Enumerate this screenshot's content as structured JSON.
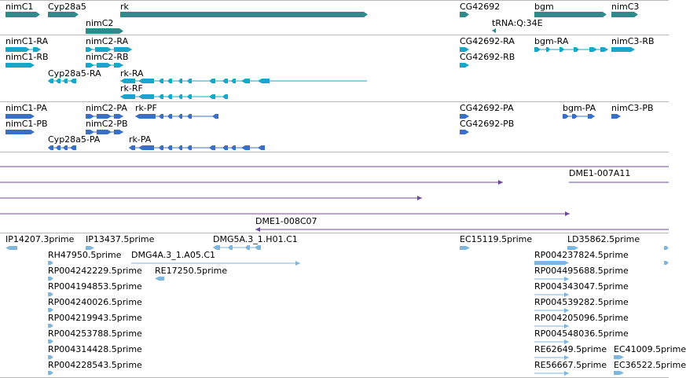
{
  "colors": {
    "gene": "#2e8b8b",
    "rna": "#1aa6c8",
    "protein": "#3a6fc8",
    "clone": "#6b4a9e",
    "est": "#7fb6dd",
    "separator": "#b8b8b8"
  },
  "tracks": {
    "genes": {
      "labels": [
        "nimC1",
        "Cyp28a5",
        "rk",
        "CG42692",
        "bgm",
        "nimC3",
        "nimC2",
        "tRNA:Q:34E"
      ]
    },
    "transcripts": {
      "labels": [
        "nimC1-RA",
        "nimC2-RA",
        "CG42692-RA",
        "bgm-RA",
        "nimC3-RB",
        "nimC1-RB",
        "nimC2-RB",
        "CG42692-RB",
        "Cyp28a5-RA",
        "rk-RA",
        "rk-RF"
      ]
    },
    "proteins": {
      "labels": [
        "nimC1-PA",
        "nimC2-PA",
        "rk-PF",
        "CG42692-PA",
        "bgm-PA",
        "nimC3-PB",
        "nimC1-PB",
        "nimC2-PB",
        "CG42692-PB",
        "Cyp28a5-PA",
        "rk-PA"
      ]
    },
    "clones": {
      "labels": [
        "DME1-007A11",
        "DME1-008C07"
      ]
    },
    "ests": {
      "labels": [
        "IP14207.3prime",
        "IP13437.5prime",
        "DMG5A.3_1.H01.C1",
        "EC15119.5prime",
        "LD35862.5prime",
        "RH47950.5prime",
        "DMG4A.3_1.A05.C1",
        "RP004237824.5prime",
        "RP004242229.5prime",
        "RE17250.5prime",
        "RP004495688.5prime",
        "RP004194853.5prime",
        "RP004343047.5prime",
        "RP004240026.5prime",
        "RP004539282.5prime",
        "RP004219943.5prime",
        "RP004205096.5prime",
        "RP004253788.5prime",
        "RP004548036.5prime",
        "RP004314428.5prime",
        "RE62649.5prime",
        "EC41009.5prime",
        "RP004228543.5prime",
        "RE56667.5prime",
        "EC36522.5prime"
      ]
    }
  }
}
